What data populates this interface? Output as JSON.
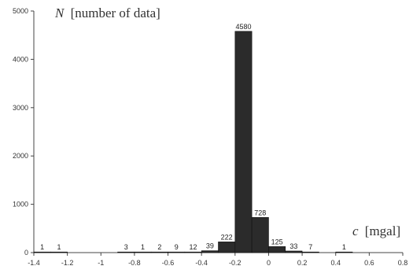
{
  "chart_data": {
    "type": "bar",
    "title": "",
    "ylabel_symbol": "N",
    "ylabel_text": "[number of data]",
    "xlabel_symbol": "c",
    "xlabel_text": "[mgal]",
    "xlim": [
      -1.4,
      0.8
    ],
    "ylim": [
      0,
      5000
    ],
    "xticks": [
      -1.4,
      -1.2,
      -1,
      -0.8,
      -0.6,
      -0.4,
      -0.2,
      0,
      0.2,
      0.4,
      0.6,
      0.8
    ],
    "xtick_labels": [
      "-1.4",
      "-1.2",
      "-1",
      "-0.8",
      "-0.6",
      "-0.4",
      "-0.2",
      "0",
      "0.2",
      "0.4",
      "0.6",
      "0.8"
    ],
    "yticks": [
      0,
      1000,
      2000,
      3000,
      4000,
      5000
    ],
    "ytick_labels": [
      "0",
      "1000",
      "2000",
      "3000",
      "4000",
      "5000"
    ],
    "bin_width": 0.1,
    "bins": [
      {
        "x": -1.35,
        "value": 1,
        "label": "1"
      },
      {
        "x": -1.25,
        "value": 1,
        "label": "1"
      },
      {
        "x": -0.85,
        "value": 3,
        "label": "3"
      },
      {
        "x": -0.75,
        "value": 1,
        "label": "1"
      },
      {
        "x": -0.65,
        "value": 2,
        "label": "2"
      },
      {
        "x": -0.55,
        "value": 9,
        "label": "9"
      },
      {
        "x": -0.45,
        "value": 12,
        "label": "12"
      },
      {
        "x": -0.35,
        "value": 39,
        "label": "39"
      },
      {
        "x": -0.25,
        "value": 222,
        "label": "222"
      },
      {
        "x": -0.15,
        "value": 4580,
        "label": "4580"
      },
      {
        "x": -0.05,
        "value": 728,
        "label": "728"
      },
      {
        "x": 0.05,
        "value": 125,
        "label": "125"
      },
      {
        "x": 0.15,
        "value": 33,
        "label": "33"
      },
      {
        "x": 0.25,
        "value": 7,
        "label": "7"
      },
      {
        "x": 0.45,
        "value": 1,
        "label": "1"
      }
    ],
    "bar_color": "#2b2b2b",
    "grid": false,
    "legend": "none"
  }
}
